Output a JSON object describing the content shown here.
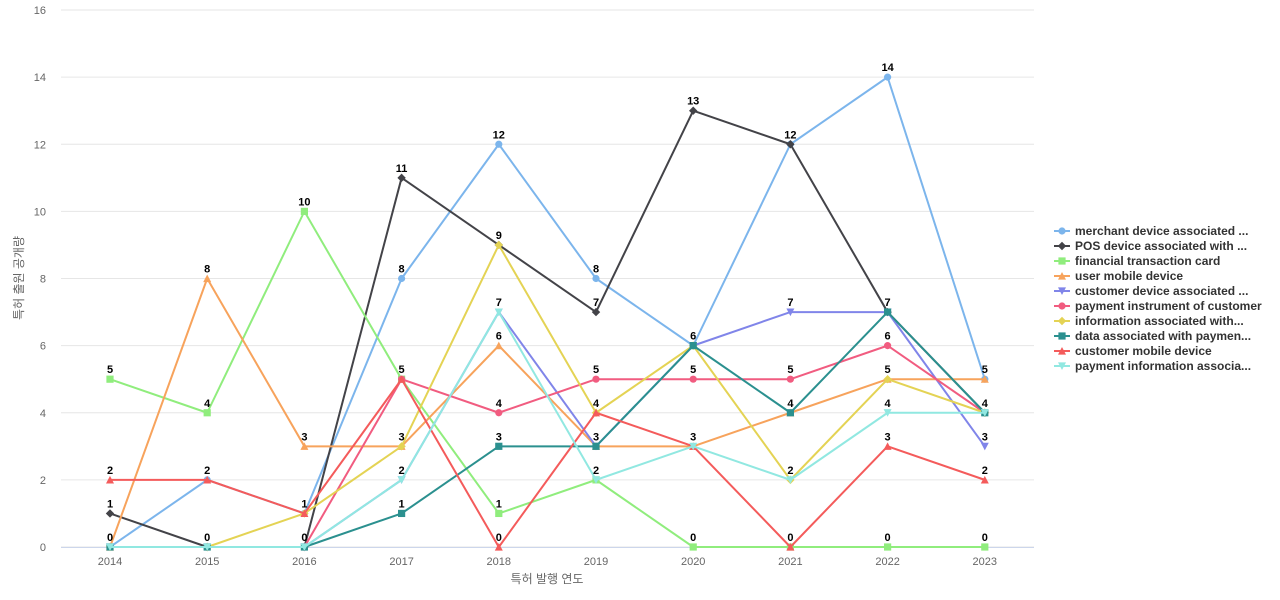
{
  "chart_data": {
    "type": "line",
    "title": "",
    "xlabel": "특허 발행 연도",
    "ylabel": "특허 출원 공개량",
    "ylim": [
      0,
      16
    ],
    "yticks": [
      0,
      2,
      4,
      6,
      8,
      10,
      12,
      14,
      16
    ],
    "grid": true,
    "legend": "right",
    "categories": [
      "2014",
      "2015",
      "2016",
      "2017",
      "2018",
      "2019",
      "2020",
      "2021",
      "2022",
      "2023"
    ],
    "series": [
      {
        "name": "merchant device associated ...",
        "color": "#7cb5ec",
        "marker": "circle",
        "values": [
          0,
          2,
          1,
          8,
          12,
          8,
          6,
          12,
          14,
          5
        ]
      },
      {
        "name": "POS device associated with ...",
        "color": "#434348",
        "marker": "diamond",
        "values": [
          1,
          0,
          0,
          11,
          9,
          7,
          13,
          12,
          7,
          4
        ]
      },
      {
        "name": "financial transaction card",
        "color": "#90ed7d",
        "marker": "square",
        "values": [
          5,
          4,
          10,
          5,
          1,
          2,
          0,
          0,
          0,
          0
        ]
      },
      {
        "name": "user mobile device",
        "color": "#f7a35c",
        "marker": "triangle",
        "values": [
          0,
          8,
          3,
          3,
          6,
          3,
          3,
          4,
          5,
          5
        ]
      },
      {
        "name": "customer device associated ...",
        "color": "#8085e9",
        "marker": "triangle-down",
        "values": [
          0,
          0,
          0,
          2,
          7,
          3,
          6,
          7,
          7,
          3
        ]
      },
      {
        "name": "payment instrument of customer",
        "color": "#f15c80",
        "marker": "circle",
        "values": [
          0,
          0,
          0,
          5,
          4,
          5,
          5,
          5,
          6,
          4
        ]
      },
      {
        "name": "information associated with...",
        "color": "#e4d354",
        "marker": "diamond",
        "values": [
          0,
          0,
          1,
          3,
          9,
          4,
          6,
          2,
          5,
          4
        ]
      },
      {
        "name": "data associated with paymen...",
        "color": "#2b908f",
        "marker": "square",
        "values": [
          0,
          0,
          0,
          1,
          3,
          3,
          6,
          4,
          7,
          4
        ]
      },
      {
        "name": "customer mobile device",
        "color": "#f45b5b",
        "marker": "triangle",
        "values": [
          2,
          2,
          1,
          5,
          0,
          4,
          3,
          0,
          3,
          2
        ]
      },
      {
        "name": "payment information associa...",
        "color": "#91e8e1",
        "marker": "triangle-down",
        "values": [
          0,
          0,
          0,
          2,
          7,
          2,
          3,
          2,
          4,
          4
        ]
      }
    ],
    "data_labels": [
      {
        "x": "2014",
        "y": 5,
        "text": "5"
      },
      {
        "x": "2014",
        "y": 2,
        "text": "2"
      },
      {
        "x": "2014",
        "y": 1,
        "text": "1"
      },
      {
        "x": "2014",
        "y": 0,
        "text": "0"
      },
      {
        "x": "2015",
        "y": 8,
        "text": "8"
      },
      {
        "x": "2015",
        "y": 4,
        "text": "4"
      },
      {
        "x": "2015",
        "y": 2,
        "text": "2"
      },
      {
        "x": "2015",
        "y": 0,
        "text": "0"
      },
      {
        "x": "2016",
        "y": 10,
        "text": "10"
      },
      {
        "x": "2016",
        "y": 3,
        "text": "3"
      },
      {
        "x": "2016",
        "y": 1,
        "text": "1"
      },
      {
        "x": "2016",
        "y": 0,
        "text": "0"
      },
      {
        "x": "2017",
        "y": 11,
        "text": "11"
      },
      {
        "x": "2017",
        "y": 8,
        "text": "8"
      },
      {
        "x": "2017",
        "y": 5,
        "text": "5"
      },
      {
        "x": "2017",
        "y": 3,
        "text": "3"
      },
      {
        "x": "2017",
        "y": 2,
        "text": "2"
      },
      {
        "x": "2017",
        "y": 1,
        "text": "1"
      },
      {
        "x": "2018",
        "y": 12,
        "text": "12"
      },
      {
        "x": "2018",
        "y": 9,
        "text": "9"
      },
      {
        "x": "2018",
        "y": 7,
        "text": "7"
      },
      {
        "x": "2018",
        "y": 6,
        "text": "6"
      },
      {
        "x": "2018",
        "y": 4,
        "text": "4"
      },
      {
        "x": "2018",
        "y": 3,
        "text": "3"
      },
      {
        "x": "2018",
        "y": 1,
        "text": "1"
      },
      {
        "x": "2018",
        "y": 0,
        "text": "0"
      },
      {
        "x": "2019",
        "y": 8,
        "text": "8"
      },
      {
        "x": "2019",
        "y": 7,
        "text": "7"
      },
      {
        "x": "2019",
        "y": 5,
        "text": "5"
      },
      {
        "x": "2019",
        "y": 4,
        "text": "4"
      },
      {
        "x": "2019",
        "y": 3,
        "text": "3"
      },
      {
        "x": "2019",
        "y": 2,
        "text": "2"
      },
      {
        "x": "2020",
        "y": 13,
        "text": "13"
      },
      {
        "x": "2020",
        "y": 6,
        "text": "6"
      },
      {
        "x": "2020",
        "y": 5,
        "text": "5"
      },
      {
        "x": "2020",
        "y": 3,
        "text": "3"
      },
      {
        "x": "2020",
        "y": 0,
        "text": "0"
      },
      {
        "x": "2021",
        "y": 12,
        "text": "12"
      },
      {
        "x": "2021",
        "y": 7,
        "text": "7"
      },
      {
        "x": "2021",
        "y": 5,
        "text": "5"
      },
      {
        "x": "2021",
        "y": 4,
        "text": "4"
      },
      {
        "x": "2021",
        "y": 2,
        "text": "2"
      },
      {
        "x": "2021",
        "y": 0,
        "text": "0"
      },
      {
        "x": "2022",
        "y": 14,
        "text": "14"
      },
      {
        "x": "2022",
        "y": 7,
        "text": "7"
      },
      {
        "x": "2022",
        "y": 6,
        "text": "6"
      },
      {
        "x": "2022",
        "y": 5,
        "text": "5"
      },
      {
        "x": "2022",
        "y": 4,
        "text": "4"
      },
      {
        "x": "2022",
        "y": 3,
        "text": "3"
      },
      {
        "x": "2022",
        "y": 0,
        "text": "0"
      },
      {
        "x": "2023",
        "y": 5,
        "text": "5"
      },
      {
        "x": "2023",
        "y": 4,
        "text": "4"
      },
      {
        "x": "2023",
        "y": 3,
        "text": "3"
      },
      {
        "x": "2023",
        "y": 2,
        "text": "2"
      },
      {
        "x": "2023",
        "y": 0,
        "text": "0"
      }
    ]
  }
}
